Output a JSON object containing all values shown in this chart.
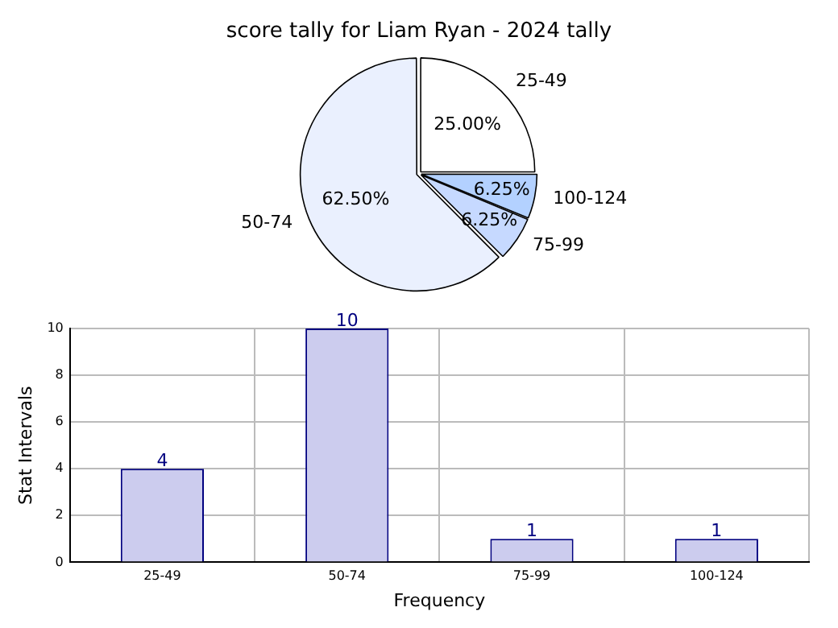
{
  "chart_data": [
    {
      "type": "pie",
      "title": "score tally for Liam Ryan - 2024 tally",
      "categories": [
        "25-49",
        "100-124",
        "75-99",
        "50-74"
      ],
      "values": [
        25,
        6.25,
        6.25,
        62.5
      ],
      "colors": [
        "#ffffff",
        "#b3d1ff",
        "#c6d9ff",
        "#eaf0fe"
      ],
      "value_labels": [
        "25.00%",
        "6.25%",
        "6.25%",
        "62.50%"
      ]
    },
    {
      "type": "bar",
      "categories": [
        "25-49",
        "50-74",
        "75-99",
        "100-124"
      ],
      "values": [
        4,
        10,
        1,
        1
      ],
      "color": "#ccccee",
      "ylim": [
        0,
        10
      ],
      "yticks": [
        0,
        2,
        4,
        6,
        8,
        10
      ],
      "grid": true,
      "data_labels": true,
      "xlabel": "Frequency",
      "ylabel": "Stat Intervals"
    }
  ]
}
